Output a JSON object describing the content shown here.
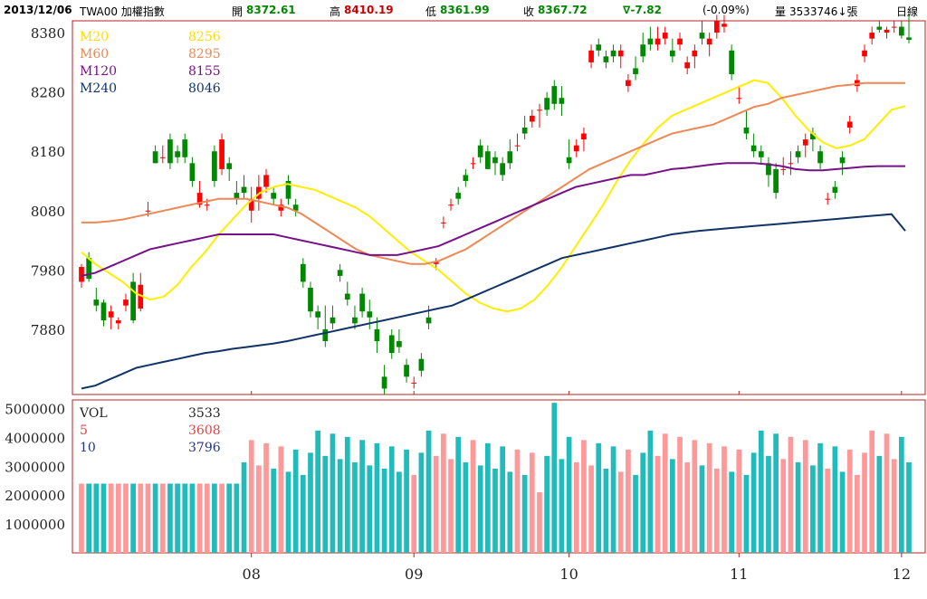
{
  "header": {
    "date": "2013/12/06",
    "symbol": "TWA00 加權指數",
    "open_label": "開",
    "open": "8372.61",
    "high_label": "高",
    "high": "8410.19",
    "low_label": "低",
    "low": "8361.99",
    "close_label": "收",
    "close": "8367.72",
    "change": "∇-7.82",
    "change_pct": "(-0.09%)",
    "volume_label": "量",
    "volume": "3533746↓張",
    "period": "日線"
  },
  "colors": {
    "up": "#ff0000",
    "down": "#008800",
    "ma20": "#ffee00",
    "ma60": "#ee8855",
    "ma120": "#771188",
    "ma240": "#113366",
    "vol_up": "#ff9999",
    "vol_down": "#22bbbb",
    "frame": "#bb2222"
  },
  "legend": {
    "price": [
      {
        "label": "M20",
        "value": "8256",
        "color": "#ffdd00"
      },
      {
        "label": "M60",
        "value": "8295",
        "color": "#ee8855"
      },
      {
        "label": "M120",
        "value": "8155",
        "color": "#771188"
      },
      {
        "label": "M240",
        "value": "8046",
        "color": "#113366"
      }
    ],
    "volume": [
      {
        "label": "VOL",
        "value": "3533",
        "color": "#222222"
      },
      {
        "label": "5",
        "value": "3608",
        "color": "#dd4444"
      },
      {
        "label": "10",
        "value": "3796",
        "color": "#223388"
      }
    ]
  },
  "chart_data": {
    "type": "candlestick",
    "price_axis": {
      "ticks": [
        7880,
        7980,
        8080,
        8180,
        8280,
        8380
      ],
      "ylim": [
        7770,
        8400
      ]
    },
    "volume_axis": {
      "ticks": [
        1000000,
        2000000,
        3000000,
        4000000,
        5000000
      ],
      "ylim": [
        0,
        5300000
      ]
    },
    "x_ticks": [
      {
        "label": "08",
        "index": 23
      },
      {
        "label": "09",
        "index": 45
      },
      {
        "label": "10",
        "index": 66
      },
      {
        "label": "11",
        "index": 89
      },
      {
        "label": "12",
        "index": 111
      }
    ],
    "candles": [
      [
        7960,
        7990,
        7950,
        7985
      ],
      [
        8000,
        8010,
        7960,
        7965
      ],
      [
        7930,
        7950,
        7910,
        7920
      ],
      [
        7925,
        7930,
        7885,
        7895
      ],
      [
        7900,
        7920,
        7880,
        7910
      ],
      [
        7890,
        7900,
        7880,
        7895
      ],
      [
        7920,
        7940,
        7910,
        7930
      ],
      [
        7960,
        7975,
        7890,
        7895
      ],
      [
        7915,
        7975,
        7910,
        7955
      ],
      [
        8080,
        8095,
        8070,
        8080
      ],
      [
        8180,
        8190,
        8160,
        8160
      ],
      [
        8170,
        8190,
        8160,
        8170
      ],
      [
        8200,
        8210,
        8150,
        8160
      ],
      [
        8180,
        8190,
        8160,
        8170
      ],
      [
        8200,
        8210,
        8160,
        8170
      ],
      [
        8160,
        8170,
        8120,
        8130
      ],
      [
        8090,
        8130,
        8085,
        8110
      ],
      [
        8090,
        8100,
        8080,
        8090
      ],
      [
        8180,
        8190,
        8120,
        8130
      ],
      [
        8150,
        8210,
        8140,
        8200
      ],
      [
        8160,
        8170,
        8130,
        8150
      ],
      [
        8110,
        8130,
        8090,
        8100
      ],
      [
        8120,
        8140,
        8100,
        8110
      ],
      [
        8080,
        8120,
        8060,
        8100
      ],
      [
        8100,
        8140,
        8080,
        8120
      ],
      [
        8120,
        8150,
        8110,
        8140
      ],
      [
        8110,
        8120,
        8090,
        8100
      ],
      [
        8080,
        8100,
        8070,
        8090
      ],
      [
        8130,
        8140,
        8090,
        8100
      ],
      [
        8090,
        8100,
        8070,
        8080
      ],
      [
        7990,
        8000,
        7950,
        7960
      ],
      [
        7950,
        7960,
        7900,
        7910
      ],
      [
        7910,
        7920,
        7880,
        7900
      ],
      [
        7880,
        7920,
        7850,
        7860
      ],
      [
        7900,
        7920,
        7880,
        7890
      ],
      [
        7980,
        7990,
        7960,
        7970
      ],
      [
        7940,
        7960,
        7920,
        7930
      ],
      [
        7900,
        7920,
        7880,
        7890
      ],
      [
        7940,
        7950,
        7900,
        7910
      ],
      [
        7910,
        7930,
        7880,
        7900
      ],
      [
        7880,
        7900,
        7840,
        7860
      ],
      [
        7800,
        7820,
        7770,
        7780
      ],
      [
        7870,
        7880,
        7830,
        7840
      ],
      [
        7860,
        7880,
        7840,
        7850
      ],
      [
        7820,
        7830,
        7790,
        7800
      ],
      [
        7790,
        7800,
        7780,
        7790
      ],
      [
        7830,
        7840,
        7800,
        7810
      ],
      [
        7900,
        7920,
        7880,
        7890
      ],
      [
        7990,
        8000,
        7980,
        7995
      ],
      [
        8060,
        8070,
        8050,
        8060
      ],
      [
        8090,
        8100,
        8080,
        8090
      ],
      [
        8110,
        8120,
        8090,
        8100
      ],
      [
        8140,
        8150,
        8120,
        8130
      ],
      [
        8160,
        8170,
        8150,
        8160
      ],
      [
        8190,
        8200,
        8160,
        8170
      ],
      [
        8180,
        8190,
        8150,
        8150
      ],
      [
        8170,
        8180,
        8140,
        8160
      ],
      [
        8160,
        8170,
        8130,
        8140
      ],
      [
        8180,
        8200,
        8150,
        8160
      ],
      [
        8190,
        8210,
        8180,
        8190
      ],
      [
        8220,
        8240,
        8200,
        8210
      ],
      [
        8230,
        8250,
        8220,
        8240
      ],
      [
        8250,
        8260,
        8220,
        8250
      ],
      [
        8270,
        8280,
        8240,
        8250
      ],
      [
        8290,
        8300,
        8250,
        8260
      ],
      [
        8270,
        8290,
        8240,
        8260
      ],
      [
        8170,
        8200,
        8150,
        8160
      ],
      [
        8180,
        8200,
        8170,
        8190
      ],
      [
        8200,
        8220,
        8180,
        8210
      ],
      [
        8330,
        8360,
        8320,
        8350
      ],
      [
        8360,
        8370,
        8340,
        8350
      ],
      [
        8340,
        8350,
        8320,
        8330
      ],
      [
        8350,
        8360,
        8330,
        8340
      ],
      [
        8340,
        8360,
        8320,
        8350
      ],
      [
        8290,
        8310,
        8280,
        8300
      ],
      [
        8320,
        8340,
        8300,
        8310
      ],
      [
        8360,
        8380,
        8330,
        8340
      ],
      [
        8370,
        8390,
        8350,
        8360
      ],
      [
        8360,
        8390,
        8350,
        8370
      ],
      [
        8370,
        8390,
        8360,
        8380
      ],
      [
        8350,
        8370,
        8330,
        8340
      ],
      [
        8360,
        8380,
        8350,
        8370
      ],
      [
        8320,
        8340,
        8310,
        8330
      ],
      [
        8340,
        8360,
        8320,
        8350
      ],
      [
        8380,
        8400,
        8360,
        8370
      ],
      [
        8360,
        8380,
        8340,
        8370
      ],
      [
        8380,
        8410,
        8370,
        8400
      ],
      [
        8390,
        8410,
        8380,
        8395
      ],
      [
        8350,
        8360,
        8300,
        8310
      ],
      [
        8270,
        8290,
        8260,
        8270
      ],
      [
        8220,
        8250,
        8200,
        8210
      ],
      [
        8190,
        8210,
        8170,
        8180
      ],
      [
        8180,
        8190,
        8160,
        8170
      ],
      [
        8160,
        8170,
        8120,
        8140
      ],
      [
        8150,
        8160,
        8100,
        8110
      ],
      [
        8150,
        8170,
        8140,
        8150
      ],
      [
        8160,
        8180,
        8140,
        8160
      ],
      [
        8180,
        8190,
        8160,
        8170
      ],
      [
        8190,
        8210,
        8170,
        8200
      ],
      [
        8210,
        8220,
        8180,
        8200
      ],
      [
        8180,
        8190,
        8150,
        8160
      ],
      [
        8100,
        8110,
        8090,
        8100
      ],
      [
        8120,
        8130,
        8100,
        8110
      ],
      [
        8170,
        8180,
        8140,
        8160
      ],
      [
        8220,
        8240,
        8210,
        8230
      ],
      [
        8290,
        8310,
        8280,
        8300
      ],
      [
        8340,
        8360,
        8330,
        8350
      ],
      [
        8370,
        8390,
        8360,
        8380
      ],
      [
        8390,
        8400,
        8380,
        8385
      ],
      [
        8380,
        8390,
        8370,
        8385
      ],
      [
        8390,
        8400,
        8380,
        8390
      ],
      [
        8390,
        8400,
        8370,
        8375
      ],
      [
        8372,
        8410,
        8362,
        8368
      ]
    ],
    "ma": {
      "M20": [
        8010,
        7990,
        7975,
        7960,
        7940,
        7930,
        7935,
        7955,
        7985,
        8010,
        8040,
        8065,
        8090,
        8110,
        8120,
        8125,
        8120,
        8115,
        8105,
        8095,
        8085,
        8070,
        8050,
        8030,
        8010,
        7995,
        7980,
        7960,
        7940,
        7925,
        7915,
        7910,
        7915,
        7930,
        7955,
        7985,
        8020,
        8055,
        8090,
        8130,
        8165,
        8195,
        8220,
        8240,
        8250,
        8260,
        8270,
        8280,
        8290,
        8300,
        8295,
        8270,
        8240,
        8215,
        8195,
        8185,
        8190,
        8200,
        8225,
        8250,
        8256
      ],
      "M60": [
        8060,
        8060,
        8062,
        8065,
        8070,
        8075,
        8080,
        8085,
        8090,
        8095,
        8100,
        8100,
        8100,
        8095,
        8090,
        8085,
        8075,
        8060,
        8045,
        8030,
        8015,
        8005,
        8000,
        7995,
        7990,
        7990,
        7995,
        8005,
        8015,
        8030,
        8045,
        8060,
        8075,
        8090,
        8105,
        8120,
        8135,
        8150,
        8160,
        8170,
        8180,
        8190,
        8200,
        8210,
        8215,
        8220,
        8225,
        8235,
        8245,
        8255,
        8260,
        8270,
        8275,
        8280,
        8285,
        8290,
        8292,
        8295,
        8295,
        8295,
        8295
      ],
      "M120": [
        7970,
        7975,
        7985,
        7995,
        8005,
        8015,
        8020,
        8025,
        8030,
        8035,
        8040,
        8040,
        8040,
        8040,
        8040,
        8035,
        8030,
        8025,
        8020,
        8015,
        8010,
        8005,
        8005,
        8005,
        8010,
        8015,
        8020,
        8030,
        8040,
        8050,
        8060,
        8070,
        8080,
        8090,
        8100,
        8110,
        8120,
        8125,
        8130,
        8135,
        8140,
        8140,
        8145,
        8150,
        8152,
        8155,
        8158,
        8160,
        8160,
        8160,
        8158,
        8155,
        8150,
        8148,
        8148,
        8150,
        8152,
        8154,
        8155,
        8155,
        8155
      ],
      "M240": [
        7780,
        7785,
        7795,
        7805,
        7815,
        7820,
        7825,
        7830,
        7835,
        7840,
        7843,
        7847,
        7850,
        7853,
        7856,
        7860,
        7865,
        7870,
        7875,
        7880,
        7885,
        7890,
        7895,
        7900,
        7905,
        7910,
        7915,
        7920,
        7930,
        7940,
        7950,
        7960,
        7970,
        7980,
        7990,
        8000,
        8005,
        8010,
        8015,
        8020,
        8025,
        8030,
        8035,
        8040,
        8043,
        8046,
        8048,
        8050,
        8052,
        8054,
        8056,
        8058,
        8060,
        8062,
        8064,
        8066,
        8068,
        8070,
        8072,
        8074,
        8046
      ]
    }
  }
}
